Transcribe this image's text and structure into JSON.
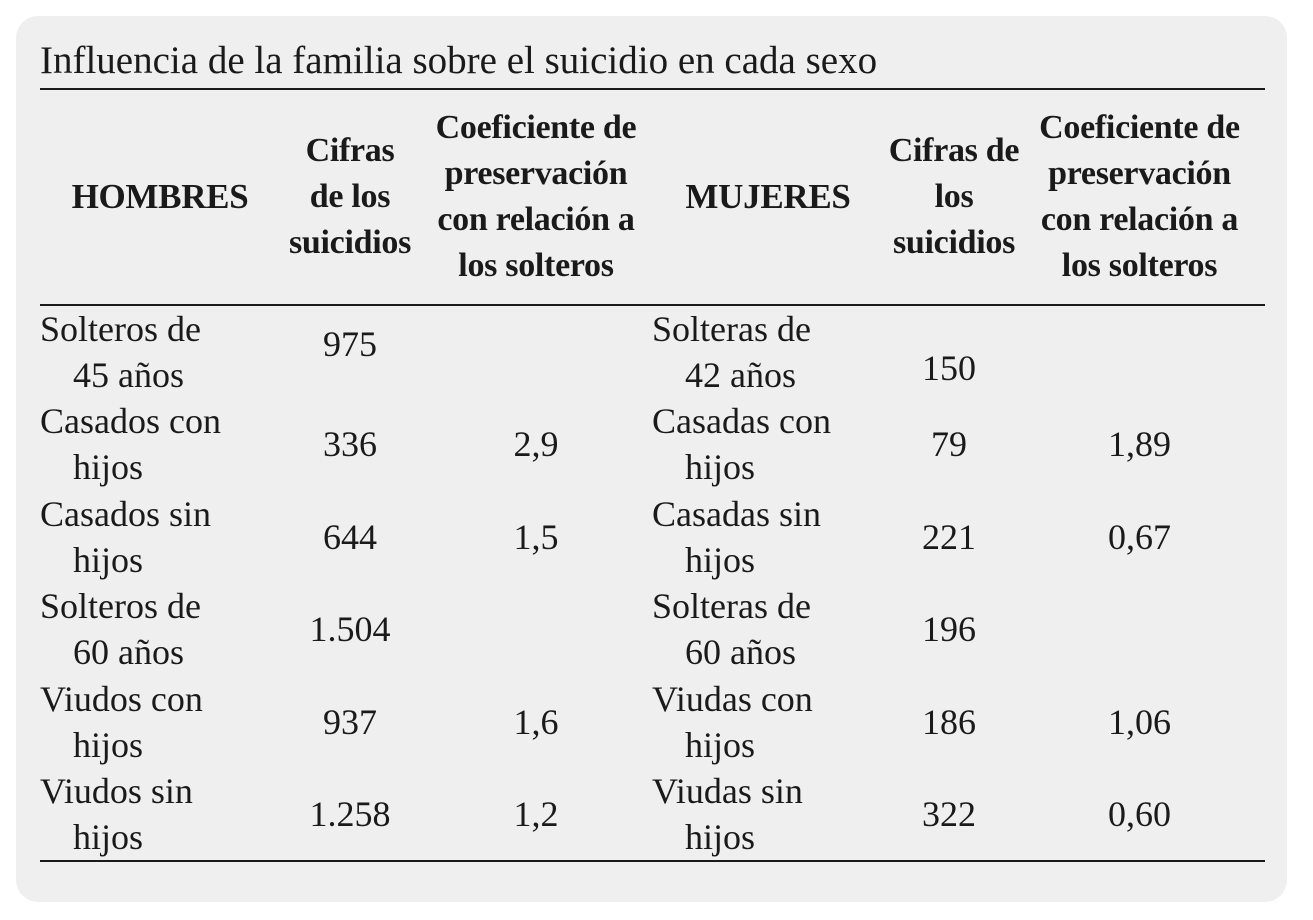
{
  "title": "Influencia de la familia sobre el suicidio en cada sexo",
  "header": {
    "hombres": "HOMBRES",
    "cifras_h": "Cifras de los suicidios",
    "coef_h": "Coeficiente de preservación con relación a los solteros",
    "mujeres": "MUJERES",
    "cifras_m": "Cifras de los suicidios",
    "coef_m": "Coeficiente de preservación con relación a los solteros"
  },
  "rows": [
    {
      "h_l1": "Solteros de",
      "h_l2": "45 años",
      "h_cifra": "975",
      "h_coef": "",
      "m_l1": "Solteras de",
      "m_l2": "42 años",
      "m_cifra": "150",
      "m_coef": ""
    },
    {
      "h_l1": "Casados con",
      "h_l2": "hijos",
      "h_cifra": "336",
      "h_coef": "2,9",
      "m_l1": "Casadas con",
      "m_l2": "hijos",
      "m_cifra": "79",
      "m_coef": "1,89"
    },
    {
      "h_l1": "Casados sin",
      "h_l2": "hijos",
      "h_cifra": "644",
      "h_coef": "1,5",
      "m_l1": "Casadas sin",
      "m_l2": "hijos",
      "m_cifra": "221",
      "m_coef": "0,67"
    },
    {
      "h_l1": "Solteros de",
      "h_l2": "60 años",
      "h_cifra": "1.504",
      "h_coef": "",
      "m_l1": "Solteras de",
      "m_l2": "60 años",
      "m_cifra": "196",
      "m_coef": ""
    },
    {
      "h_l1": "Viudos con",
      "h_l2": "hijos",
      "h_cifra": "937",
      "h_coef": "1,6",
      "m_l1": "Viudas con",
      "m_l2": "hijos",
      "m_cifra": "186",
      "m_coef": "1,06"
    },
    {
      "h_l1": "Viudos sin",
      "h_l2": "hijos",
      "h_cifra": "1.258",
      "h_coef": "1,2",
      "m_l1": "Viudas sin",
      "m_l2": "hijos",
      "m_cifra": "322",
      "m_coef": "0,60"
    }
  ]
}
